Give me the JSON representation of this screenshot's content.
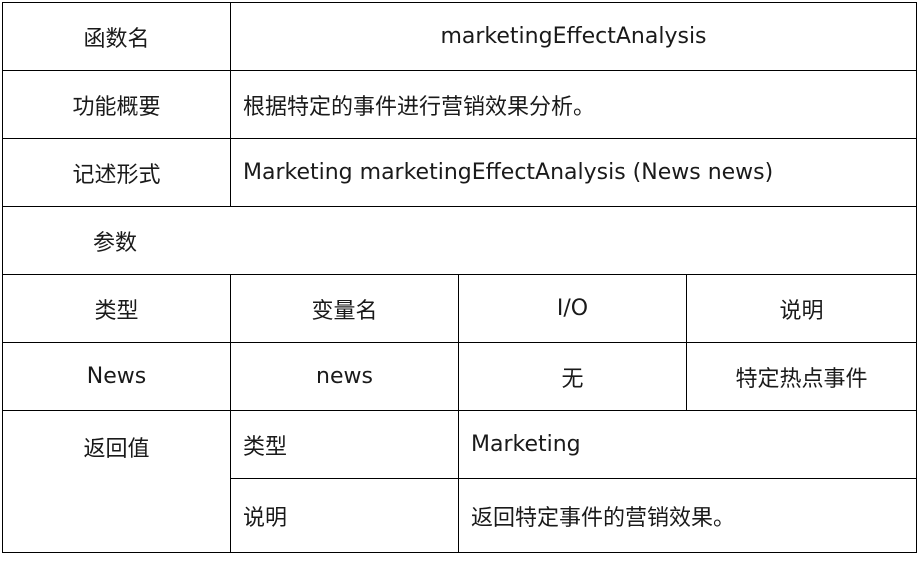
{
  "function_name": {
    "label": "函数名",
    "value": "marketingEffectAnalysis"
  },
  "summary": {
    "label": "功能概要",
    "value": "根据特定的事件进行营销效果分析。"
  },
  "signature": {
    "label": "记述形式",
    "value": "Marketing marketingEffectAnalysis (News news)"
  },
  "parameters": {
    "label": "参数",
    "headers": [
      "类型",
      "变量名",
      "I/O",
      "说明"
    ],
    "rows": [
      [
        "News",
        "news",
        "无",
        "特定热点事件"
      ]
    ]
  },
  "return_value": {
    "label": "返回值",
    "type_label": "类型",
    "type_value": "Marketing",
    "desc_label": "说明",
    "desc_value": "返回特定事件的营销效果。"
  }
}
